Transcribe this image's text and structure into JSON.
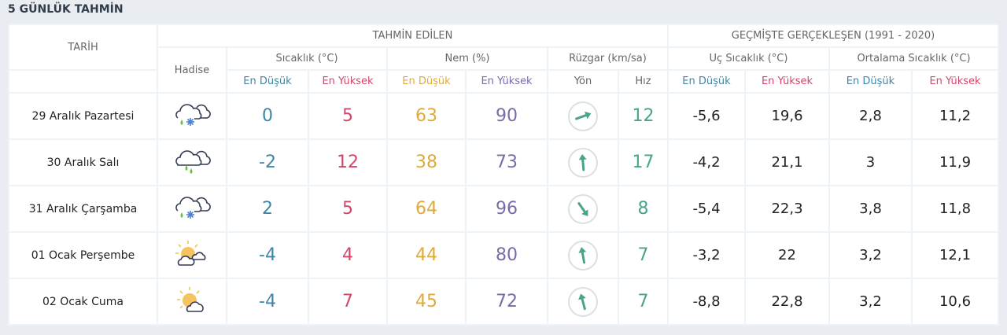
{
  "page": {
    "title": "5 GÜNLÜK TAHMİN"
  },
  "header": {
    "date_col": "TARİH",
    "forecast_group": "TAHMİN EDİLEN",
    "history_group": "GEÇMİŞTE GERÇEKLEŞEN (1991 - 2020)",
    "event_col": "Hadise",
    "temp_group": "Sıcaklık (°C)",
    "humidity_group": "Nem (%)",
    "wind_group": "Rüzgar (km/sa)",
    "extreme_temp_group": "Uç Sıcaklık (°C)",
    "avg_temp_group": "Ortalama Sıcaklık (°C)",
    "min_label": "En Düşük",
    "max_label": "En Yüksek",
    "direction_label": "Yön",
    "speed_label": "Hız"
  },
  "colors": {
    "min_temp": "#3e86a8",
    "max_temp": "#d1476a",
    "min_humidity": "#e0aa3b",
    "max_humidity": "#7a6aa8",
    "wind": "#4aa38b"
  },
  "rows": [
    {
      "date": "29 Aralık Pazartesi",
      "icon": "rain-snow-icon",
      "temp_min": "0",
      "temp_max": "5",
      "hum_min": "63",
      "hum_max": "90",
      "wind_dir_deg": 70,
      "wind_speed": "12",
      "ext_min": "-5,6",
      "ext_max": "19,6",
      "avg_min": "2,8",
      "avg_max": "11,2"
    },
    {
      "date": "30 Aralık Salı",
      "icon": "rain-icon",
      "temp_min": "-2",
      "temp_max": "12",
      "hum_min": "38",
      "hum_max": "73",
      "wind_dir_deg": -5,
      "wind_speed": "17",
      "ext_min": "-4,2",
      "ext_max": "21,1",
      "avg_min": "3",
      "avg_max": "11,9"
    },
    {
      "date": "31 Aralık Çarşamba",
      "icon": "rain-snow-icon",
      "temp_min": "2",
      "temp_max": "5",
      "hum_min": "64",
      "hum_max": "96",
      "wind_dir_deg": 145,
      "wind_speed": "8",
      "ext_min": "-5,4",
      "ext_max": "22,3",
      "avg_min": "3,8",
      "avg_max": "11,8"
    },
    {
      "date": "01 Ocak Perşembe",
      "icon": "partly-cloudy-icon",
      "temp_min": "-4",
      "temp_max": "4",
      "hum_min": "44",
      "hum_max": "80",
      "wind_dir_deg": -10,
      "wind_speed": "7",
      "ext_min": "-3,2",
      "ext_max": "22",
      "avg_min": "3,2",
      "avg_max": "12,1"
    },
    {
      "date": "02 Ocak Cuma",
      "icon": "sun-cloud-icon",
      "temp_min": "-4",
      "temp_max": "7",
      "hum_min": "45",
      "hum_max": "72",
      "wind_dir_deg": -15,
      "wind_speed": "7",
      "ext_min": "-8,8",
      "ext_max": "22,8",
      "avg_min": "3,2",
      "avg_max": "10,6"
    }
  ]
}
